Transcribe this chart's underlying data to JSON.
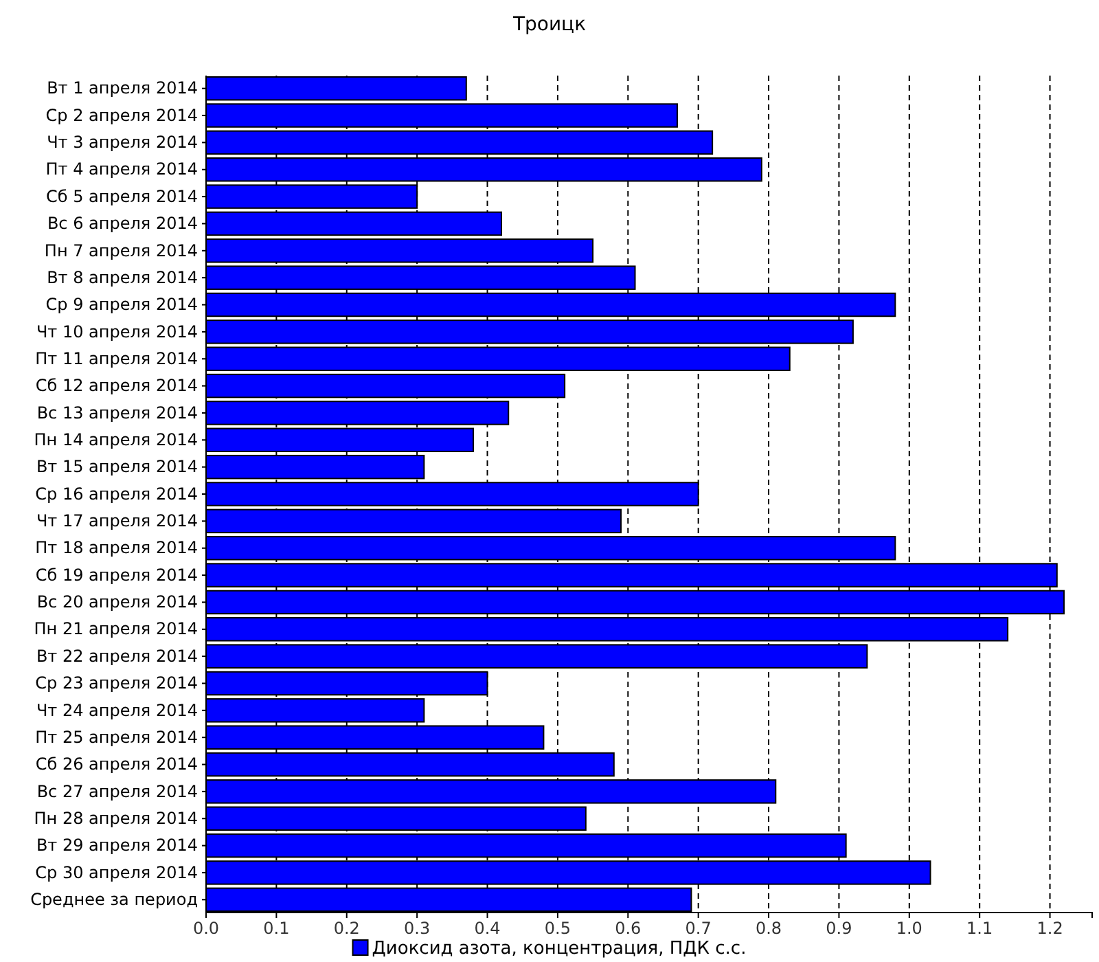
{
  "chart_data": {
    "type": "bar",
    "orientation": "horizontal",
    "title": "Троицк",
    "categories": [
      "Вт 1 апреля 2014",
      "Ср 2 апреля 2014",
      "Чт 3 апреля 2014",
      "Пт 4 апреля 2014",
      "Сб 5 апреля 2014",
      "Вс 6 апреля 2014",
      "Пн 7 апреля 2014",
      "Вт 8 апреля 2014",
      "Ср 9 апреля 2014",
      "Чт 10 апреля 2014",
      "Пт 11 апреля 2014",
      "Сб 12 апреля 2014",
      "Вс 13 апреля 2014",
      "Пн 14 апреля 2014",
      "Вт 15 апреля 2014",
      "Ср 16 апреля 2014",
      "Чт 17 апреля 2014",
      "Пт 18 апреля 2014",
      "Сб 19 апреля 2014",
      "Вс 20 апреля 2014",
      "Пн 21 апреля 2014",
      "Вт 22 апреля 2014",
      "Ср 23 апреля 2014",
      "Чт 24 апреля 2014",
      "Пт 25 апреля 2014",
      "Сб 26 апреля 2014",
      "Вс 27 апреля 2014",
      "Пн 28 апреля 2014",
      "Вт 29 апреля 2014",
      "Ср 30 апреля 2014",
      "Среднее за период"
    ],
    "series": [
      {
        "name": "Диоксид азота, концентрация, ПДК с.с.",
        "color": "#0000ff",
        "values": [
          0.37,
          0.67,
          0.72,
          0.79,
          0.3,
          0.42,
          0.55,
          0.61,
          0.98,
          0.92,
          0.83,
          0.51,
          0.43,
          0.38,
          0.31,
          0.7,
          0.59,
          0.98,
          1.21,
          1.22,
          1.14,
          0.94,
          0.4,
          0.31,
          0.48,
          0.58,
          0.81,
          0.54,
          0.91,
          1.03,
          0.69
        ]
      }
    ],
    "xlim": [
      0,
      1.26
    ],
    "xticks": [
      {
        "value": 0,
        "label": "0.0"
      },
      0.1,
      0.2,
      0.3,
      0.4,
      0.5,
      0.6,
      0.7,
      0.8,
      0.9,
      {
        "value": 1,
        "label": "1.0"
      },
      1.1,
      1.2
    ],
    "grid": "x",
    "legend": "bottom"
  }
}
